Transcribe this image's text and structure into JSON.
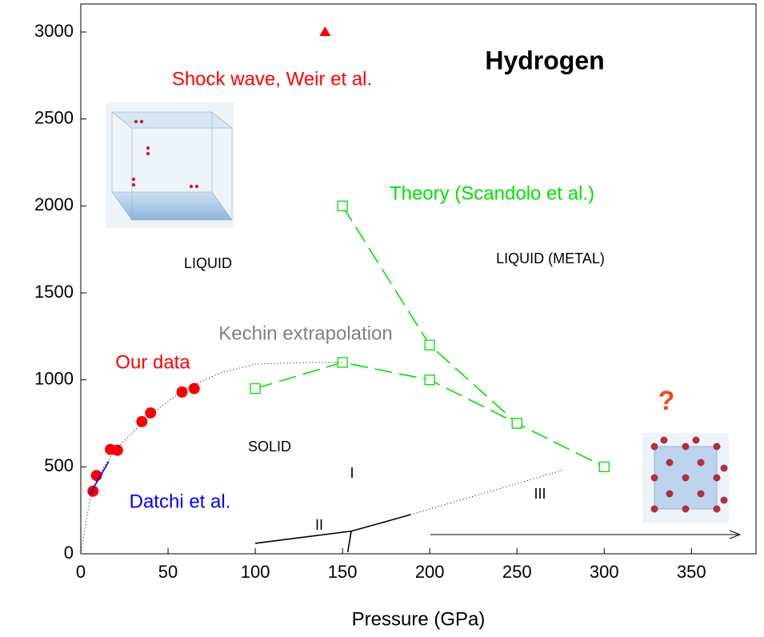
{
  "chart_data": {
    "type": "scatter",
    "title": "Hydrogen",
    "x_label": "Pressure (GPa)",
    "xlim": [
      0,
      387
    ],
    "ylim": [
      0,
      3161
    ],
    "xticks": [
      0,
      50,
      100,
      150,
      200,
      250,
      300,
      350
    ],
    "yticks": [
      0,
      500,
      1000,
      1500,
      2000,
      2500,
      3000
    ],
    "series": [
      {
        "name": "Our data",
        "color": "#ff0000",
        "marker": "circle",
        "x": [
          7,
          9,
          17,
          21,
          35,
          40,
          58,
          65
        ],
        "values": [
          360,
          450,
          600,
          595,
          760,
          810,
          930,
          950
        ]
      },
      {
        "name": "Shock wave, Weir et al.",
        "color": "#ff0000",
        "marker": "triangle",
        "x": [
          140
        ],
        "values": [
          3000
        ]
      },
      {
        "name": "Theory (Scandolo et al.)",
        "color": "#00e000",
        "marker": "square",
        "line": "dashed",
        "x": [
          150,
          200,
          250,
          300,
          null,
          100,
          150,
          200,
          250
        ],
        "values": [
          2000,
          1200,
          750,
          500,
          null,
          950,
          1100,
          1000,
          750
        ]
      },
      {
        "name": "Datchi et al.",
        "color": "#0000ff",
        "line": "solid",
        "x": [
          5,
          16
        ],
        "values": [
          340,
          530
        ]
      },
      {
        "name": "Kechin extrapolation",
        "color": "#000000",
        "label_color": "#808080",
        "line": "dotted",
        "x": [
          0,
          5,
          10,
          20,
          40,
          60,
          80,
          100,
          130,
          150
        ],
        "values": [
          0,
          300,
          450,
          600,
          800,
          950,
          1040,
          1090,
          1100,
          1100
        ]
      },
      {
        "color": "#000000",
        "line": "solid",
        "x": [
          100,
          155,
          158,
          189
        ],
        "values": [
          60,
          130,
          138,
          225
        ]
      },
      {
        "color": "#000000",
        "line": "solid",
        "x": [
          153,
          155
        ],
        "values": [
          10,
          130
        ]
      },
      {
        "color": "#000000",
        "line": "dotted",
        "x": [
          189,
          277
        ],
        "values": [
          225,
          483
        ]
      }
    ],
    "annotations": [
      "LIQUID",
      "LIQUID (METAL)",
      "SOLID",
      "I",
      "II",
      "III",
      "?"
    ]
  }
}
